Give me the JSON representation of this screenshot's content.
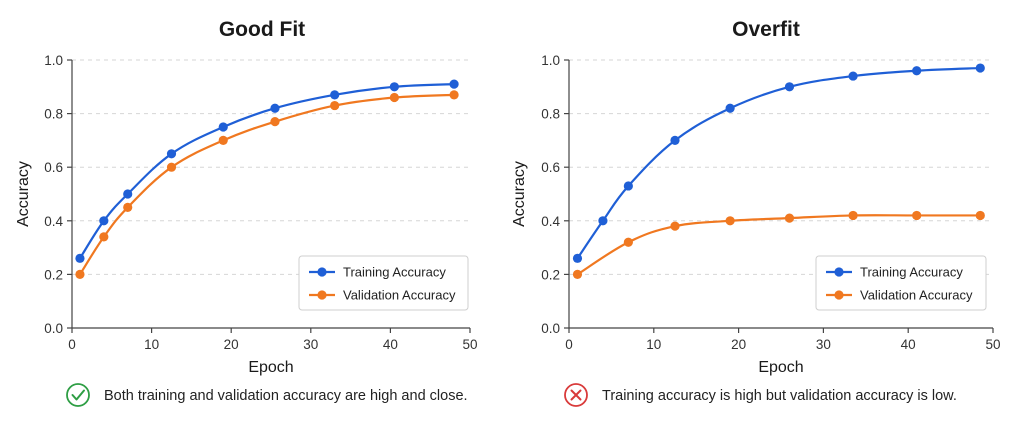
{
  "chart_data": [
    {
      "type": "line",
      "title": "Good Fit",
      "xlabel": "Epoch",
      "ylabel": "Accuracy",
      "xlim": [
        0,
        50
      ],
      "ylim": [
        0.0,
        1.0
      ],
      "xticks": [
        0,
        10,
        20,
        30,
        40,
        50
      ],
      "yticks": [
        0.0,
        0.2,
        0.4,
        0.6,
        0.8,
        1.0
      ],
      "ytick_labels": [
        "0.0",
        "0.2",
        "0.4",
        "0.6",
        "0.8",
        "1.0"
      ],
      "grid": "horizontal-dashed",
      "legend_position": "bottom-right",
      "series": [
        {
          "name": "Training Accuracy",
          "color": "#1f5fd6",
          "x": [
            1,
            4,
            7,
            12.5,
            19,
            25.5,
            33,
            40.5,
            48
          ],
          "values": [
            0.26,
            0.4,
            0.5,
            0.65,
            0.75,
            0.82,
            0.87,
            0.9,
            0.91
          ]
        },
        {
          "name": "Validation Accuracy",
          "color": "#f07820",
          "x": [
            1,
            4,
            7,
            12.5,
            19,
            25.5,
            33,
            40.5,
            48
          ],
          "values": [
            0.2,
            0.34,
            0.45,
            0.6,
            0.7,
            0.77,
            0.83,
            0.86,
            0.87
          ]
        }
      ],
      "caption": {
        "icon": "check-circle-icon",
        "icon_color": "#2e9e44",
        "text": "Both training and validation accuracy are high and close."
      }
    },
    {
      "type": "line",
      "title": "Overfit",
      "xlabel": "Epoch",
      "ylabel": "Accuracy",
      "xlim": [
        0,
        50
      ],
      "ylim": [
        0.0,
        1.0
      ],
      "xticks": [
        0,
        10,
        20,
        30,
        40,
        50
      ],
      "yticks": [
        0.0,
        0.2,
        0.4,
        0.6,
        0.8,
        1.0
      ],
      "ytick_labels": [
        "0.0",
        "0.2",
        "0.4",
        "0.6",
        "0.8",
        "1.0"
      ],
      "grid": "horizontal-dashed",
      "legend_position": "bottom-right",
      "series": [
        {
          "name": "Training Accuracy",
          "color": "#1f5fd6",
          "x": [
            1,
            4,
            7,
            12.5,
            19,
            26,
            33.5,
            41,
            48.5
          ],
          "values": [
            0.26,
            0.4,
            0.53,
            0.7,
            0.82,
            0.9,
            0.94,
            0.96,
            0.97
          ]
        },
        {
          "name": "Validation Accuracy",
          "color": "#f07820",
          "x": [
            1,
            7,
            12.5,
            19,
            26,
            33.5,
            41,
            48.5
          ],
          "values": [
            0.2,
            0.32,
            0.38,
            0.4,
            0.41,
            0.42,
            0.42,
            0.42
          ]
        }
      ],
      "caption": {
        "icon": "x-circle-icon",
        "icon_color": "#d93a3a",
        "text": "Training accuracy is high but validation accuracy is low."
      }
    }
  ]
}
